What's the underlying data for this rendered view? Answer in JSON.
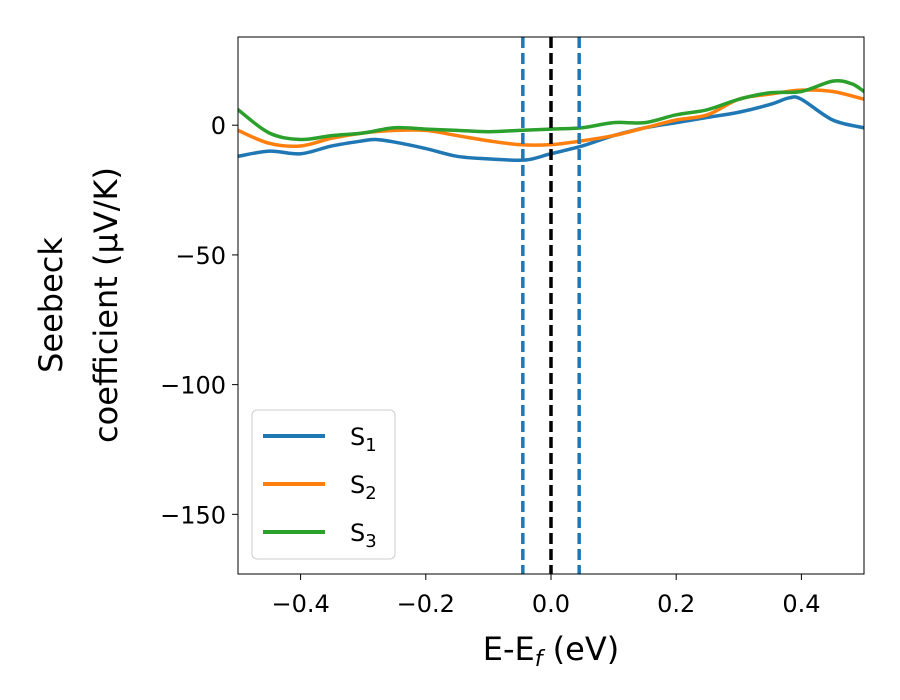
{
  "chart_data": {
    "type": "line",
    "xlabel": "E-E",
    "xlabel_sub": "f",
    "xlabel_unit": " (eV)",
    "ylabel_line1": "Seebeck",
    "ylabel_line2": "coefficient  (μV/K)",
    "xlim": [
      -0.5,
      0.5
    ],
    "ylim": [
      -173,
      34
    ],
    "xticks": [
      -0.4,
      -0.2,
      0.0,
      0.2,
      0.4
    ],
    "xtick_labels": [
      "−0.4",
      "−0.2",
      "0.0",
      "0.2",
      "0.4"
    ],
    "yticks": [
      0,
      -50,
      -100,
      -150
    ],
    "ytick_labels": [
      "0",
      "−50",
      "−100",
      "−150"
    ],
    "grid": false,
    "legend_position": "lower-left",
    "vlines": [
      {
        "x": -0.045,
        "color": "#1f77b4",
        "style": "dashed"
      },
      {
        "x": 0.0,
        "color": "#000000",
        "style": "dashed"
      },
      {
        "x": 0.045,
        "color": "#1f77b4",
        "style": "dashed"
      }
    ],
    "series": [
      {
        "name": "S",
        "sub": "1",
        "color": "#1f77b4",
        "x": [
          -0.5,
          -0.45,
          -0.4,
          -0.35,
          -0.3,
          -0.28,
          -0.25,
          -0.2,
          -0.15,
          -0.1,
          -0.05,
          -0.03,
          0.0,
          0.05,
          0.1,
          0.15,
          0.2,
          0.25,
          0.3,
          0.35,
          0.38,
          0.4,
          0.45,
          0.5
        ],
        "y": [
          -12,
          -10,
          -11,
          -8,
          -6,
          -5.5,
          -6.5,
          -9,
          -12,
          -13,
          -13.5,
          -13,
          -11,
          -8,
          -4,
          -1,
          1,
          3,
          5,
          8,
          10.5,
          10,
          2,
          -1
        ]
      },
      {
        "name": "S",
        "sub": "2",
        "color": "#ff7f0e",
        "x": [
          -0.5,
          -0.45,
          -0.4,
          -0.35,
          -0.3,
          -0.25,
          -0.2,
          -0.15,
          -0.1,
          -0.05,
          0.0,
          0.05,
          0.1,
          0.15,
          0.2,
          0.25,
          0.3,
          0.35,
          0.4,
          0.45,
          0.5
        ],
        "y": [
          -2,
          -7,
          -8,
          -5,
          -3,
          -2,
          -2,
          -4,
          -6,
          -7.5,
          -7.5,
          -6,
          -4,
          -1,
          2,
          4,
          10,
          12,
          13.5,
          13,
          10
        ]
      },
      {
        "name": "S",
        "sub": "3",
        "color": "#2ca02c",
        "x": [
          -0.5,
          -0.45,
          -0.4,
          -0.35,
          -0.3,
          -0.25,
          -0.2,
          -0.15,
          -0.1,
          -0.05,
          0.0,
          0.05,
          0.1,
          0.15,
          0.2,
          0.25,
          0.3,
          0.35,
          0.4,
          0.45,
          0.48,
          0.5
        ],
        "y": [
          6,
          -3,
          -5.5,
          -4,
          -3,
          -1,
          -1.5,
          -2,
          -2.5,
          -2,
          -1.5,
          -1,
          1,
          1,
          4,
          6,
          10,
          12.5,
          13,
          17,
          16,
          13
        ]
      }
    ]
  }
}
